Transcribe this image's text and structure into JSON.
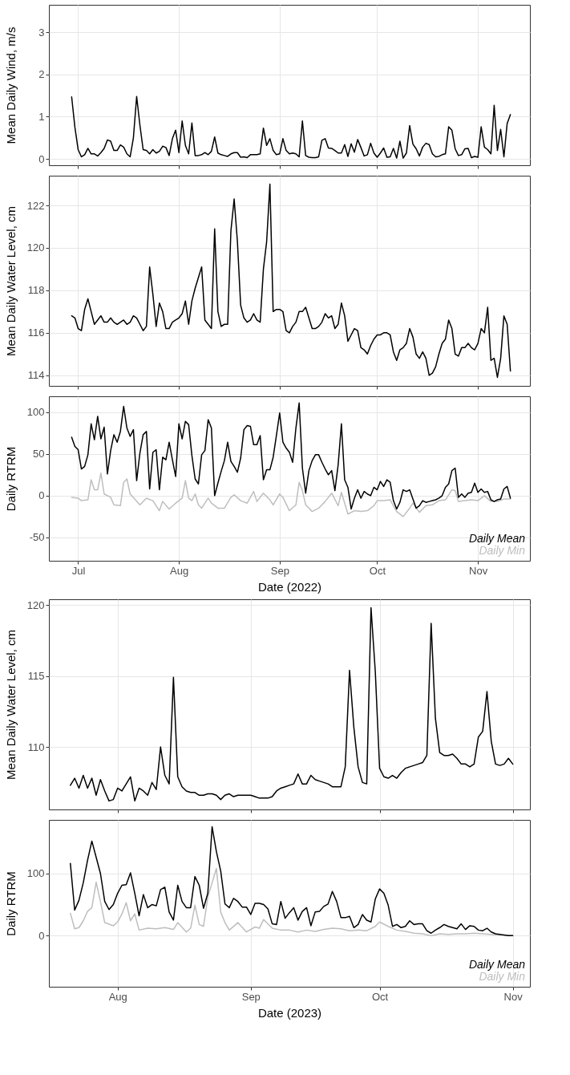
{
  "chart_data": [
    {
      "type": "line",
      "ylabel": "Mean Daily Wind, m/s",
      "ylim": [
        -0.15,
        3.65
      ],
      "yticks": [
        0,
        1,
        2,
        3
      ],
      "xlim": [
        "2022-06-22",
        "2022-11-17"
      ],
      "xticks": [
        {
          "value": "2022-07-01",
          "label": null
        },
        {
          "value": "2022-08-01",
          "label": null
        },
        {
          "value": "2022-09-01",
          "label": null
        },
        {
          "value": "2022-10-01",
          "label": null
        },
        {
          "value": "2022-11-01",
          "label": null
        }
      ],
      "grid": true,
      "tick_labels": "y",
      "x": [
        "2022-06-29",
        "2022-06-30",
        "2022-07-01",
        "2022-07-02",
        "2022-07-03",
        "2022-07-04",
        "2022-07-05",
        "2022-07-06",
        "2022-07-07",
        "2022-07-08",
        "2022-07-09",
        "2022-07-10",
        "2022-07-11",
        "2022-07-12",
        "2022-07-13",
        "2022-07-14",
        "2022-07-15",
        "2022-07-16",
        "2022-07-17",
        "2022-07-18",
        "2022-07-19",
        "2022-07-20",
        "2022-07-21",
        "2022-07-22",
        "2022-07-23",
        "2022-07-24",
        "2022-07-25",
        "2022-07-26",
        "2022-07-27",
        "2022-07-28",
        "2022-07-29",
        "2022-07-30",
        "2022-07-31",
        "2022-08-01",
        "2022-08-02",
        "2022-08-03",
        "2022-08-04",
        "2022-08-05",
        "2022-08-06",
        "2022-08-07",
        "2022-08-08",
        "2022-08-09",
        "2022-08-10",
        "2022-08-11",
        "2022-08-12",
        "2022-08-13",
        "2022-08-14",
        "2022-08-15",
        "2022-08-16",
        "2022-08-17",
        "2022-08-18",
        "2022-08-19",
        "2022-08-20",
        "2022-08-21",
        "2022-08-22",
        "2022-08-23",
        "2022-08-24",
        "2022-08-25",
        "2022-08-26",
        "2022-08-27",
        "2022-08-28",
        "2022-08-29",
        "2022-08-30",
        "2022-08-31",
        "2022-09-01",
        "2022-09-02",
        "2022-09-03",
        "2022-09-04",
        "2022-09-05",
        "2022-09-06",
        "2022-09-07",
        "2022-09-08",
        "2022-09-09",
        "2022-09-10",
        "2022-09-11",
        "2022-09-12",
        "2022-09-13",
        "2022-09-14",
        "2022-09-15",
        "2022-09-16",
        "2022-09-17",
        "2022-09-18",
        "2022-09-19",
        "2022-09-20",
        "2022-09-21",
        "2022-09-22",
        "2022-09-23",
        "2022-09-24",
        "2022-09-25",
        "2022-09-26",
        "2022-09-27",
        "2022-09-28",
        "2022-09-29",
        "2022-09-30",
        "2022-10-01",
        "2022-10-02",
        "2022-10-03",
        "2022-10-04",
        "2022-10-05",
        "2022-10-06",
        "2022-10-07",
        "2022-10-08",
        "2022-10-09",
        "2022-10-10",
        "2022-10-11",
        "2022-10-12",
        "2022-10-13",
        "2022-10-14",
        "2022-10-15",
        "2022-10-16",
        "2022-10-17",
        "2022-10-18",
        "2022-10-19",
        "2022-10-20",
        "2022-10-21",
        "2022-10-22",
        "2022-10-23",
        "2022-10-24",
        "2022-10-25",
        "2022-10-26",
        "2022-10-27",
        "2022-10-28",
        "2022-10-29",
        "2022-10-30",
        "2022-10-31",
        "2022-11-01",
        "2022-11-02",
        "2022-11-03",
        "2022-11-04",
        "2022-11-05",
        "2022-11-06",
        "2022-11-07",
        "2022-11-08",
        "2022-11-09",
        "2022-11-10",
        "2022-11-11"
      ],
      "series": [
        {
          "color": "#000000",
          "values": [
            1.47,
            0.75,
            0.22,
            0.05,
            0.1,
            0.25,
            0.12,
            0.12,
            0.07,
            0.15,
            0.25,
            0.45,
            0.42,
            0.2,
            0.2,
            0.33,
            0.28,
            0.12,
            0.05,
            0.5,
            1.48,
            0.8,
            0.22,
            0.2,
            0.12,
            0.22,
            0.14,
            0.18,
            0.3,
            0.27,
            0.08,
            0.48,
            0.68,
            0.15,
            0.9,
            0.32,
            0.12,
            0.85,
            0.08,
            0.08,
            0.1,
            0.15,
            0.1,
            0.18,
            0.52,
            0.14,
            0.1,
            0.08,
            0.06,
            0.12,
            0.15,
            0.15,
            0.04,
            0.05,
            0.03,
            0.1,
            0.1,
            0.1,
            0.12,
            0.73,
            0.32,
            0.48,
            0.2,
            0.1,
            0.12,
            0.48,
            0.2,
            0.12,
            0.14,
            0.12,
            0.05,
            0.9,
            0.08,
            0.04,
            0.03,
            0.03,
            0.05,
            0.44,
            0.48,
            0.26,
            0.25,
            0.2,
            0.14,
            0.14,
            0.34,
            0.06,
            0.36,
            0.16,
            0.46,
            0.27,
            0.07,
            0.1,
            0.37,
            0.14,
            0.04,
            0.14,
            0.26,
            0.04,
            0.05,
            0.25,
            0.02,
            0.42,
            0.02,
            0.14,
            0.79,
            0.35,
            0.24,
            0.07,
            0.28,
            0.37,
            0.34,
            0.12,
            0.05,
            0.06,
            0.1,
            0.12,
            0.76,
            0.68,
            0.24,
            0.08,
            0.1,
            0.24,
            0.25,
            0.03,
            0.06,
            0.04,
            0.76,
            0.28,
            0.22,
            0.12,
            1.27,
            0.2,
            0.7,
            0.05,
            0.84,
            1.05
          ]
        }
      ]
    },
    {
      "type": "line",
      "ylabel": "Mean Daily Water Level, cm",
      "ylim": [
        113.5,
        123.4
      ],
      "yticks": [
        114,
        116,
        118,
        120,
        122
      ],
      "xlim": [
        "2022-06-22",
        "2022-11-17"
      ],
      "xticks": [
        {
          "value": "2022-07-01",
          "label": null
        },
        {
          "value": "2022-08-01",
          "label": null
        },
        {
          "value": "2022-09-01",
          "label": null
        },
        {
          "value": "2022-10-01",
          "label": null
        },
        {
          "value": "2022-11-01",
          "label": null
        }
      ],
      "grid": true,
      "tick_labels": "y",
      "x": [
        "2022-06-29",
        "2022-06-30",
        "2022-07-01",
        "2022-07-02",
        "2022-07-03",
        "2022-07-04",
        "2022-07-05",
        "2022-07-06",
        "2022-07-07",
        "2022-07-08",
        "2022-07-09",
        "2022-07-10",
        "2022-07-11",
        "2022-07-12",
        "2022-07-13",
        "2022-07-14",
        "2022-07-15",
        "2022-07-16",
        "2022-07-17",
        "2022-07-18",
        "2022-07-19",
        "2022-07-20",
        "2022-07-21",
        "2022-07-22",
        "2022-07-23",
        "2022-07-24",
        "2022-07-25",
        "2022-07-26",
        "2022-07-27",
        "2022-07-28",
        "2022-07-29",
        "2022-07-30",
        "2022-07-31",
        "2022-08-01",
        "2022-08-02",
        "2022-08-03",
        "2022-08-04",
        "2022-08-05",
        "2022-08-06",
        "2022-08-07",
        "2022-08-08",
        "2022-08-09",
        "2022-08-10",
        "2022-08-11",
        "2022-08-12",
        "2022-08-13",
        "2022-08-14",
        "2022-08-15",
        "2022-08-16",
        "2022-08-17",
        "2022-08-18",
        "2022-08-19",
        "2022-08-20",
        "2022-08-21",
        "2022-08-22",
        "2022-08-23",
        "2022-08-24",
        "2022-08-25",
        "2022-08-26",
        "2022-08-27",
        "2022-08-28",
        "2022-08-29",
        "2022-08-30",
        "2022-08-31",
        "2022-09-01",
        "2022-09-02",
        "2022-09-03",
        "2022-09-04",
        "2022-09-05",
        "2022-09-06",
        "2022-09-07",
        "2022-09-08",
        "2022-09-09",
        "2022-09-10",
        "2022-09-11",
        "2022-09-12",
        "2022-09-13",
        "2022-09-14",
        "2022-09-15",
        "2022-09-16",
        "2022-09-17",
        "2022-09-18",
        "2022-09-19",
        "2022-09-20",
        "2022-09-21",
        "2022-09-22",
        "2022-09-23",
        "2022-09-24",
        "2022-09-25",
        "2022-09-26",
        "2022-09-27",
        "2022-09-28",
        "2022-09-29",
        "2022-09-30",
        "2022-10-01",
        "2022-10-02",
        "2022-10-03",
        "2022-10-04",
        "2022-10-05",
        "2022-10-06",
        "2022-10-07",
        "2022-10-08",
        "2022-10-09",
        "2022-10-10",
        "2022-10-11",
        "2022-10-12",
        "2022-10-13",
        "2022-10-14",
        "2022-10-15",
        "2022-10-16",
        "2022-10-17",
        "2022-10-18",
        "2022-10-19",
        "2022-10-20",
        "2022-10-21",
        "2022-10-22",
        "2022-10-23",
        "2022-10-24",
        "2022-10-25",
        "2022-10-26",
        "2022-10-27",
        "2022-10-28",
        "2022-10-29",
        "2022-10-30",
        "2022-10-31",
        "2022-11-01",
        "2022-11-02",
        "2022-11-03",
        "2022-11-04",
        "2022-11-05",
        "2022-11-06",
        "2022-11-07",
        "2022-11-08",
        "2022-11-09",
        "2022-11-10",
        "2022-11-11"
      ],
      "series": [
        {
          "color": "#000000",
          "values": [
            116.8,
            116.7,
            116.2,
            116.1,
            117.1,
            117.6,
            117.0,
            116.4,
            116.6,
            116.8,
            116.5,
            116.5,
            116.7,
            116.5,
            116.4,
            116.5,
            116.6,
            116.4,
            116.5,
            116.8,
            116.7,
            116.4,
            116.1,
            116.3,
            119.1,
            117.8,
            116.3,
            117.4,
            117.0,
            116.2,
            116.2,
            116.5,
            116.6,
            116.7,
            116.9,
            117.5,
            116.4,
            117.5,
            118.1,
            118.6,
            119.1,
            116.6,
            116.4,
            116.2,
            120.9,
            117.0,
            116.3,
            116.4,
            116.4,
            120.8,
            122.3,
            120.3,
            117.3,
            116.7,
            116.5,
            116.6,
            116.9,
            116.6,
            116.5,
            119.0,
            120.3,
            123.0,
            117.0,
            117.1,
            117.1,
            117.0,
            116.1,
            116.0,
            116.3,
            116.5,
            117.0,
            117.0,
            117.2,
            116.7,
            116.2,
            116.2,
            116.3,
            116.5,
            116.9,
            116.7,
            116.8,
            116.2,
            116.4,
            117.4,
            116.8,
            115.6,
            115.9,
            116.2,
            116.1,
            115.3,
            115.2,
            115.0,
            115.4,
            115.7,
            115.9,
            115.9,
            116.0,
            116.0,
            115.9,
            115.1,
            114.7,
            115.2,
            115.3,
            115.5,
            116.2,
            115.8,
            115.0,
            114.8,
            115.1,
            114.8,
            114.0,
            114.1,
            114.4,
            115.0,
            115.5,
            115.7,
            116.6,
            116.2,
            115.0,
            114.9,
            115.3,
            115.3,
            115.5,
            115.3,
            115.2,
            115.5,
            116.2,
            116.0,
            117.2,
            114.7,
            114.8,
            113.9,
            114.8,
            116.8,
            116.4,
            114.2
          ]
        }
      ]
    },
    {
      "type": "line",
      "ylabel": "Daily RTRM",
      "xlabel": "Date (2022)",
      "ylim": [
        -78,
        119
      ],
      "yticks": [
        -50,
        0,
        50,
        100
      ],
      "xlim": [
        "2022-06-22",
        "2022-11-17"
      ],
      "xticks": [
        {
          "value": "2022-07-01",
          "label": "Jul"
        },
        {
          "value": "2022-08-01",
          "label": "Aug"
        },
        {
          "value": "2022-09-01",
          "label": "Sep"
        },
        {
          "value": "2022-10-01",
          "label": "Oct"
        },
        {
          "value": "2022-11-01",
          "label": "Nov"
        }
      ],
      "grid": true,
      "legend": "bottom right",
      "x": [
        "2022-06-29",
        "2022-06-30",
        "2022-07-01",
        "2022-07-02",
        "2022-07-03",
        "2022-07-04",
        "2022-07-05",
        "2022-07-06",
        "2022-07-07",
        "2022-07-08",
        "2022-07-09",
        "2022-07-10",
        "2022-07-11",
        "2022-07-12",
        "2022-07-13",
        "2022-07-14",
        "2022-07-15",
        "2022-07-16",
        "2022-07-17",
        "2022-07-18",
        "2022-07-19",
        "2022-07-20",
        "2022-07-21",
        "2022-07-22",
        "2022-07-23",
        "2022-07-24",
        "2022-07-25",
        "2022-07-26",
        "2022-07-27",
        "2022-07-28",
        "2022-07-29",
        "2022-07-30",
        "2022-07-31",
        "2022-08-01",
        "2022-08-02",
        "2022-08-03",
        "2022-08-04",
        "2022-08-05",
        "2022-08-06",
        "2022-08-07",
        "2022-08-08",
        "2022-08-09",
        "2022-08-10",
        "2022-08-11",
        "2022-08-12",
        "2022-08-13",
        "2022-08-14",
        "2022-08-15",
        "2022-08-16",
        "2022-08-17",
        "2022-08-18",
        "2022-08-19",
        "2022-08-20",
        "2022-08-21",
        "2022-08-22",
        "2022-08-23",
        "2022-08-24",
        "2022-08-25",
        "2022-08-26",
        "2022-08-27",
        "2022-08-28",
        "2022-08-29",
        "2022-08-30",
        "2022-08-31",
        "2022-09-01",
        "2022-09-02",
        "2022-09-03",
        "2022-09-04",
        "2022-09-05",
        "2022-09-06",
        "2022-09-07",
        "2022-09-08",
        "2022-09-09",
        "2022-09-10",
        "2022-09-11",
        "2022-09-12",
        "2022-09-13",
        "2022-09-14",
        "2022-09-15",
        "2022-09-16",
        "2022-09-17",
        "2022-09-18",
        "2022-09-19",
        "2022-09-20",
        "2022-09-21",
        "2022-09-22",
        "2022-09-23",
        "2022-09-24",
        "2022-09-25",
        "2022-09-26",
        "2022-09-27",
        "2022-09-28",
        "2022-09-29",
        "2022-09-30",
        "2022-10-01",
        "2022-10-02",
        "2022-10-03",
        "2022-10-04",
        "2022-10-05",
        "2022-10-06",
        "2022-10-07",
        "2022-10-08",
        "2022-10-09",
        "2022-10-10",
        "2022-10-11",
        "2022-10-12",
        "2022-10-13",
        "2022-10-14",
        "2022-10-15",
        "2022-10-16",
        "2022-10-17",
        "2022-10-18",
        "2022-10-19",
        "2022-10-20",
        "2022-10-21",
        "2022-10-22",
        "2022-10-23",
        "2022-10-24",
        "2022-10-25",
        "2022-10-26",
        "2022-10-27",
        "2022-10-28",
        "2022-10-29",
        "2022-10-30",
        "2022-10-31",
        "2022-11-01",
        "2022-11-02",
        "2022-11-03",
        "2022-11-04",
        "2022-11-05",
        "2022-11-06",
        "2022-11-07",
        "2022-11-08",
        "2022-11-09",
        "2022-11-10",
        "2022-11-11"
      ],
      "series": [
        {
          "name": "Daily Min",
          "color": "#bebebe",
          "x": [
            "2022-06-29",
            "2022-07-01",
            "2022-07-02",
            "2022-07-04",
            "2022-07-05",
            "2022-07-06",
            "2022-07-07",
            "2022-07-08",
            "2022-07-09",
            "2022-07-11",
            "2022-07-12",
            "2022-07-14",
            "2022-07-15",
            "2022-07-16",
            "2022-07-17",
            "2022-07-20",
            "2022-07-22",
            "2022-07-24",
            "2022-07-26",
            "2022-07-27",
            "2022-07-29",
            "2022-07-31",
            "2022-08-02",
            "2022-08-03",
            "2022-08-04",
            "2022-08-05",
            "2022-08-06",
            "2022-08-07",
            "2022-08-08",
            "2022-08-10",
            "2022-08-11",
            "2022-08-13",
            "2022-08-15",
            "2022-08-17",
            "2022-08-18",
            "2022-08-20",
            "2022-08-22",
            "2022-08-24",
            "2022-08-25",
            "2022-08-27",
            "2022-08-29",
            "2022-08-30",
            "2022-09-01",
            "2022-09-02",
            "2022-09-04",
            "2022-09-06",
            "2022-09-07",
            "2022-09-08",
            "2022-09-09",
            "2022-09-11",
            "2022-09-13",
            "2022-09-15",
            "2022-09-17",
            "2022-09-19",
            "2022-09-20",
            "2022-09-22",
            "2022-09-24",
            "2022-09-26",
            "2022-09-28",
            "2022-09-30",
            "2022-10-01",
            "2022-10-03",
            "2022-10-05",
            "2022-10-07",
            "2022-10-09",
            "2022-10-11",
            "2022-10-12",
            "2022-10-14",
            "2022-10-16",
            "2022-10-18",
            "2022-10-20",
            "2022-10-22",
            "2022-10-24",
            "2022-10-25",
            "2022-10-26",
            "2022-10-28",
            "2022-10-30",
            "2022-11-01",
            "2022-11-03",
            "2022-11-05",
            "2022-11-07",
            "2022-11-09",
            "2022-11-11"
          ],
          "values": [
            -2,
            -3,
            -6,
            -5,
            19,
            7,
            7,
            27,
            2,
            -2,
            -11,
            -12,
            16,
            20,
            2,
            -11,
            -3,
            -6,
            -18,
            -7,
            -16,
            -9,
            -3,
            18,
            -3,
            -6,
            2,
            -11,
            -15,
            -3,
            -9,
            -15,
            -15,
            -2,
            1,
            -6,
            -9,
            5,
            -7,
            3,
            -5,
            -11,
            2,
            -2,
            -18,
            -11,
            16,
            6,
            -11,
            -19,
            -15,
            -7,
            3,
            -12,
            4,
            -22,
            -18,
            -19,
            -18,
            -12,
            -6,
            -6,
            -5,
            -19,
            -25,
            -15,
            -9,
            -20,
            -12,
            -11,
            -6,
            -5,
            7,
            6,
            -7,
            -6,
            -5,
            -6,
            0,
            -7,
            -7,
            -4,
            -4
          ]
        },
        {
          "name": "Daily Mean",
          "color": "#000000",
          "values": [
            70,
            59,
            55,
            32,
            35,
            49,
            86,
            67,
            95,
            68,
            82,
            26,
            54,
            73,
            64,
            77,
            107,
            81,
            71,
            79,
            18,
            51,
            73,
            77,
            8,
            52,
            55,
            7,
            46,
            43,
            64,
            43,
            23,
            86,
            68,
            89,
            85,
            48,
            20,
            14,
            49,
            54,
            91,
            81,
            0,
            15,
            29,
            42,
            64,
            41,
            35,
            28,
            45,
            79,
            84,
            83,
            61,
            61,
            72,
            19,
            31,
            31,
            46,
            72,
            99,
            64,
            57,
            52,
            40,
            81,
            111,
            33,
            3,
            30,
            42,
            49,
            49,
            40,
            32,
            25,
            30,
            6,
            37,
            86,
            19,
            10,
            -16,
            -3,
            7,
            -3,
            5,
            2,
            0,
            10,
            7,
            17,
            11,
            19,
            16,
            -6,
            -16,
            -8,
            7,
            5,
            7,
            -4,
            -15,
            -12,
            -6,
            -8,
            -7,
            -6,
            -5,
            -3,
            0,
            10,
            14,
            30,
            33,
            -2,
            2,
            -2,
            3,
            4,
            15,
            4,
            8,
            4,
            5,
            -5,
            -7,
            -5,
            -4,
            8,
            11,
            -3
          ]
        }
      ]
    },
    {
      "type": "line",
      "ylabel": "Mean Daily Water Level, cm",
      "ylim": [
        105.6,
        120.4
      ],
      "yticks": [
        110,
        115,
        120
      ],
      "xlim": [
        "2023-07-16",
        "2023-11-05"
      ],
      "xticks": [
        {
          "value": "2023-08-01",
          "label": null
        },
        {
          "value": "2023-09-01",
          "label": null
        },
        {
          "value": "2023-10-01",
          "label": null
        },
        {
          "value": "2023-11-01",
          "label": null
        }
      ],
      "grid": true,
      "tick_labels": "y",
      "x": [
        "2023-07-21",
        "2023-07-22",
        "2023-07-23",
        "2023-07-24",
        "2023-07-25",
        "2023-07-26",
        "2023-07-27",
        "2023-07-28",
        "2023-07-29",
        "2023-07-30",
        "2023-07-31",
        "2023-08-01",
        "2023-08-02",
        "2023-08-03",
        "2023-08-04",
        "2023-08-05",
        "2023-08-06",
        "2023-08-07",
        "2023-08-08",
        "2023-08-09",
        "2023-08-10",
        "2023-08-11",
        "2023-08-12",
        "2023-08-13",
        "2023-08-14",
        "2023-08-15",
        "2023-08-16",
        "2023-08-17",
        "2023-08-18",
        "2023-08-19",
        "2023-08-20",
        "2023-08-21",
        "2023-08-22",
        "2023-08-23",
        "2023-08-24",
        "2023-08-25",
        "2023-08-26",
        "2023-08-27",
        "2023-08-28",
        "2023-08-29",
        "2023-08-30",
        "2023-08-31",
        "2023-09-01",
        "2023-09-02",
        "2023-09-03",
        "2023-09-04",
        "2023-09-05",
        "2023-09-06",
        "2023-09-07",
        "2023-09-08",
        "2023-09-09",
        "2023-09-10",
        "2023-09-11",
        "2023-09-12",
        "2023-09-13",
        "2023-09-14",
        "2023-09-15",
        "2023-09-16",
        "2023-09-17",
        "2023-09-18",
        "2023-09-19",
        "2023-09-20",
        "2023-09-21",
        "2023-09-22",
        "2023-09-23",
        "2023-09-24",
        "2023-09-25",
        "2023-09-26",
        "2023-09-27",
        "2023-09-28",
        "2023-09-29",
        "2023-09-30",
        "2023-10-01",
        "2023-10-02",
        "2023-10-03",
        "2023-10-04",
        "2023-10-05",
        "2023-10-06",
        "2023-10-07",
        "2023-10-08",
        "2023-10-09",
        "2023-10-10",
        "2023-10-11",
        "2023-10-12",
        "2023-10-13",
        "2023-10-14",
        "2023-10-15",
        "2023-10-16",
        "2023-10-17",
        "2023-10-18",
        "2023-10-19",
        "2023-10-20",
        "2023-10-21",
        "2023-10-22",
        "2023-10-23",
        "2023-10-24",
        "2023-10-25",
        "2023-10-26",
        "2023-10-27",
        "2023-10-28",
        "2023-10-29",
        "2023-10-30",
        "2023-10-31",
        "2023-11-01"
      ],
      "series": [
        {
          "color": "#000000",
          "values": [
            107.3,
            107.8,
            107.1,
            108.0,
            107.1,
            107.8,
            106.6,
            107.7,
            106.9,
            106.2,
            106.3,
            107.1,
            106.9,
            107.4,
            107.9,
            106.2,
            107.1,
            106.9,
            106.6,
            107.5,
            107.0,
            110.0,
            108.0,
            107.4,
            114.9,
            107.9,
            107.2,
            106.9,
            106.8,
            106.8,
            106.6,
            106.6,
            106.7,
            106.7,
            106.6,
            106.3,
            106.6,
            106.7,
            106.5,
            106.6,
            106.6,
            106.6,
            106.6,
            106.5,
            106.4,
            106.4,
            106.4,
            106.5,
            106.9,
            107.1,
            107.2,
            107.3,
            107.4,
            108.1,
            107.4,
            107.4,
            108.0,
            107.7,
            107.6,
            107.5,
            107.4,
            107.2,
            107.2,
            107.2,
            108.6,
            115.4,
            111.4,
            108.6,
            107.5,
            107.4,
            119.8,
            115.3,
            108.5,
            107.9,
            107.8,
            108.0,
            107.8,
            108.2,
            108.5,
            108.6,
            108.7,
            108.8,
            108.9,
            109.4,
            118.7,
            112.0,
            109.6,
            109.4,
            109.4,
            109.5,
            109.2,
            108.8,
            108.8,
            108.6,
            108.8,
            110.7,
            111.1,
            113.9,
            110.4,
            108.8,
            108.7,
            108.8,
            109.2,
            108.8
          ]
        }
      ]
    },
    {
      "type": "line",
      "ylabel": "Daily RTRM",
      "xlabel": "Date (2023)",
      "ylim": [
        -82,
        186
      ],
      "yticks": [
        0,
        100
      ],
      "xlim": [
        "2023-07-16",
        "2023-11-05"
      ],
      "xticks": [
        {
          "value": "2023-08-01",
          "label": "Aug"
        },
        {
          "value": "2023-09-01",
          "label": "Sep"
        },
        {
          "value": "2023-10-01",
          "label": "Oct"
        },
        {
          "value": "2023-11-01",
          "label": "Nov"
        }
      ],
      "grid": true,
      "legend": "bottom right",
      "x": [
        "2023-07-21",
        "2023-07-22",
        "2023-07-23",
        "2023-07-24",
        "2023-07-25",
        "2023-07-26",
        "2023-07-27",
        "2023-07-28",
        "2023-07-29",
        "2023-07-30",
        "2023-07-31",
        "2023-08-01",
        "2023-08-02",
        "2023-08-03",
        "2023-08-04",
        "2023-08-05",
        "2023-08-06",
        "2023-08-07",
        "2023-08-08",
        "2023-08-09",
        "2023-08-10",
        "2023-08-11",
        "2023-08-12",
        "2023-08-13",
        "2023-08-14",
        "2023-08-15",
        "2023-08-16",
        "2023-08-17",
        "2023-08-18",
        "2023-08-19",
        "2023-08-20",
        "2023-08-21",
        "2023-08-22",
        "2023-08-23",
        "2023-08-24",
        "2023-08-25",
        "2023-08-26",
        "2023-08-27",
        "2023-08-28",
        "2023-08-29",
        "2023-08-30",
        "2023-08-31",
        "2023-09-01",
        "2023-09-02",
        "2023-09-03",
        "2023-09-04",
        "2023-09-05",
        "2023-09-06",
        "2023-09-07",
        "2023-09-08",
        "2023-09-09",
        "2023-09-10",
        "2023-09-11",
        "2023-09-12",
        "2023-09-13",
        "2023-09-14",
        "2023-09-15",
        "2023-09-16",
        "2023-09-17",
        "2023-09-18",
        "2023-09-19",
        "2023-09-20",
        "2023-09-21",
        "2023-09-22",
        "2023-09-23",
        "2023-09-24",
        "2023-09-25",
        "2023-09-26",
        "2023-09-27",
        "2023-09-28",
        "2023-09-29",
        "2023-09-30",
        "2023-10-01",
        "2023-10-02",
        "2023-10-03",
        "2023-10-04",
        "2023-10-05",
        "2023-10-06",
        "2023-10-07",
        "2023-10-08",
        "2023-10-09",
        "2023-10-10",
        "2023-10-11",
        "2023-10-12",
        "2023-10-13",
        "2023-10-14",
        "2023-10-15",
        "2023-10-16",
        "2023-10-17",
        "2023-10-18",
        "2023-10-19",
        "2023-10-20",
        "2023-10-21",
        "2023-10-22",
        "2023-10-23",
        "2023-10-24",
        "2023-10-25",
        "2023-10-26",
        "2023-10-27",
        "2023-10-28",
        "2023-10-29",
        "2023-10-30",
        "2023-10-31",
        "2023-11-01"
      ],
      "series": [
        {
          "name": "Daily Min",
          "color": "#bebebe",
          "x": [
            "2023-07-21",
            "2023-07-22",
            "2023-07-23",
            "2023-07-24",
            "2023-07-25",
            "2023-07-26",
            "2023-07-27",
            "2023-07-28",
            "2023-07-29",
            "2023-07-31",
            "2023-08-01",
            "2023-08-02",
            "2023-08-03",
            "2023-08-04",
            "2023-08-05",
            "2023-08-06",
            "2023-08-08",
            "2023-08-10",
            "2023-08-12",
            "2023-08-14",
            "2023-08-15",
            "2023-08-17",
            "2023-08-18",
            "2023-08-19",
            "2023-08-20",
            "2023-08-21",
            "2023-08-22",
            "2023-08-23",
            "2023-08-24",
            "2023-08-25",
            "2023-08-26",
            "2023-08-27",
            "2023-08-29",
            "2023-08-31",
            "2023-09-02",
            "2023-09-03",
            "2023-09-04",
            "2023-09-06",
            "2023-09-08",
            "2023-09-10",
            "2023-09-12",
            "2023-09-14",
            "2023-09-16",
            "2023-09-18",
            "2023-09-20",
            "2023-09-22",
            "2023-09-24",
            "2023-09-26",
            "2023-09-28",
            "2023-09-30",
            "2023-10-01",
            "2023-10-03",
            "2023-10-05",
            "2023-10-07",
            "2023-10-09",
            "2023-10-11",
            "2023-10-13",
            "2023-10-15",
            "2023-10-17",
            "2023-10-19",
            "2023-10-21",
            "2023-10-23",
            "2023-10-25",
            "2023-10-27",
            "2023-10-29",
            "2023-11-01"
          ],
          "values": [
            36,
            11,
            13,
            24,
            39,
            45,
            86,
            55,
            21,
            16,
            22,
            35,
            53,
            24,
            35,
            9,
            12,
            11,
            13,
            10,
            21,
            6,
            12,
            49,
            18,
            15,
            62,
            85,
            108,
            38,
            21,
            9,
            21,
            6,
            14,
            12,
            26,
            12,
            9,
            9,
            6,
            9,
            7,
            10,
            12,
            11,
            8,
            9,
            8,
            15,
            22,
            15,
            9,
            7,
            4,
            3,
            0,
            3,
            2,
            3,
            3,
            4,
            3,
            2,
            1,
            0
          ]
        },
        {
          "name": "Daily Mean",
          "color": "#000000",
          "values": [
            116,
            41,
            57,
            85,
            121,
            152,
            126,
            100,
            55,
            42,
            50,
            68,
            81,
            82,
            101,
            68,
            32,
            66,
            45,
            50,
            48,
            74,
            78,
            38,
            25,
            81,
            55,
            45,
            45,
            95,
            81,
            44,
            68,
            175,
            135,
            104,
            51,
            45,
            60,
            55,
            46,
            46,
            34,
            52,
            52,
            50,
            43,
            19,
            18,
            55,
            28,
            37,
            45,
            25,
            39,
            45,
            16,
            38,
            39,
            47,
            51,
            71,
            55,
            29,
            29,
            31,
            13,
            18,
            34,
            25,
            22,
            59,
            75,
            68,
            49,
            15,
            18,
            13,
            15,
            24,
            18,
            19,
            19,
            8,
            4,
            9,
            13,
            18,
            15,
            13,
            11,
            19,
            10,
            16,
            15,
            9,
            8,
            12,
            6,
            3,
            2,
            1,
            0,
            0
          ]
        }
      ]
    }
  ]
}
